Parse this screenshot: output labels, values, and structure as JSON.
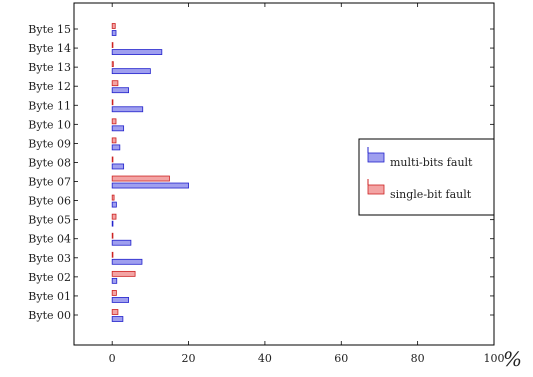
{
  "chart_data": {
    "type": "bar",
    "orientation": "horizontal",
    "categories": [
      "Byte 00",
      "Byte 01",
      "Byte 02",
      "Byte 03",
      "Byte 04",
      "Byte 05",
      "Byte 06",
      "Byte 07",
      "Byte 08",
      "Byte 09",
      "Byte 10",
      "Byte 11",
      "Byte 12",
      "Byte 13",
      "Byte 14",
      "Byte 15"
    ],
    "series": [
      {
        "name": "multi-bits fault",
        "color": "#9f9fef",
        "stroke": "#2222cc",
        "values": [
          2.8,
          4.3,
          1.2,
          7.8,
          4.9,
          0.2,
          1.1,
          20.0,
          3.0,
          2.0,
          3.0,
          8.0,
          4.3,
          10.0,
          13.0,
          1.0
        ]
      },
      {
        "name": "single-bit fault",
        "color": "#f3a4a4",
        "stroke": "#cc2222",
        "values": [
          1.5,
          1.1,
          6.0,
          0.2,
          0.2,
          1.0,
          0.5,
          15.0,
          0.2,
          1.0,
          1.0,
          0.2,
          1.5,
          0.3,
          0.2,
          0.8
        ]
      }
    ],
    "xlim": [
      -10,
      100
    ],
    "xticks": [
      "0",
      "20",
      "40",
      "60",
      "80",
      "100"
    ],
    "xtick_values": [
      0,
      20,
      40,
      60,
      80,
      100
    ],
    "unit_label": "%",
    "legend_position": "right",
    "grid": false
  }
}
